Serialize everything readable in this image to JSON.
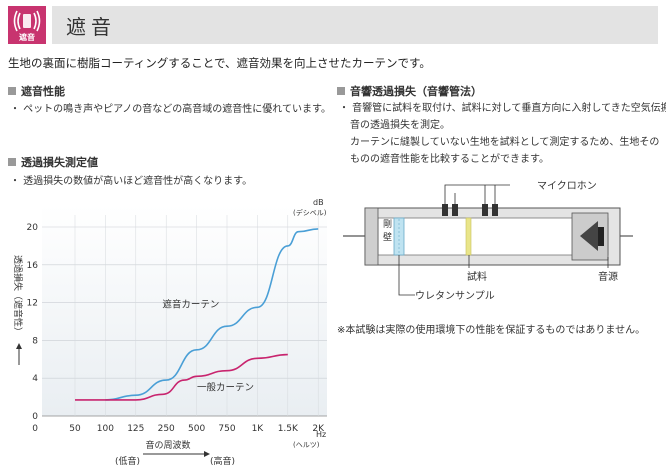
{
  "header": {
    "badge_label": "遮音",
    "title": "遮音",
    "accent_color": "#c8346f",
    "title_bar_color": "#e3e3e3",
    "badge_icon": "sound-waves-icon"
  },
  "intro": "生地の裏面に樹脂コーティングすることで、遮音効果を向上させたカーテンです。",
  "left": {
    "section1_heading": "遮音性能",
    "section1_bullet": "・ ペットの鳴き声やピアノの音などの高音域の遮音性に優れています。",
    "section2_heading": "透過損失測定値",
    "section2_bullet": "・ 透過損失の数値が高いほど遮音性が高くなります。"
  },
  "right": {
    "heading": "音響透過損失（音響管法）",
    "bullet_lines": [
      "・ 音響管に試料を取付け、試料に対して垂直方向に入射してきた空気伝搬",
      "音の透過損失を測定。",
      "カーテンに縫製していない生地を試料として測定するため、生地その",
      "ものの遮音性能を比較することができます。"
    ],
    "diagram": {
      "wall_label": "剛壁",
      "microphone_label": "マイクロホン",
      "sample_label": "試料",
      "urethane_label": "ウレタンサンプル",
      "source_label": "音源"
    },
    "note": "※本試験は実際の使用環境下の性能を保証するものではありません。"
  },
  "chart_data": {
    "type": "line",
    "categories": [
      "50",
      "100",
      "125",
      "250",
      "500",
      "750",
      "1K",
      "1.5K",
      "2K"
    ],
    "y_unit_top": "dB",
    "y_unit_sub": "(デシベル)",
    "ylabel": "透過損失（遮音性）",
    "ylim": [
      0,
      20
    ],
    "yticks": [
      "0",
      "4",
      "8",
      "12",
      "16",
      "20"
    ],
    "x_unit": "Hz",
    "x_unit_sub": "(ヘルツ)",
    "xlabel": "音の周波数",
    "x_low": "(低音)",
    "x_high": "(高音)",
    "grid": true,
    "series": [
      {
        "name": "遮音カーテン",
        "color": "#4a9fd6",
        "values": [
          1.7,
          2.2,
          3.8,
          7.0,
          9.5,
          11.5,
          18.0,
          19.5,
          19.8
        ],
        "x": [
          1,
          2,
          3,
          4,
          5,
          6,
          7,
          7.35,
          8
        ]
      },
      {
        "name": "一般カーテン",
        "color": "#c8246e",
        "values": [
          1.7,
          1.7,
          1.7,
          2.3,
          3.8,
          4.2,
          4.8,
          6.1,
          6.5
        ],
        "x": [
          0,
          1,
          2,
          2.9,
          3.6,
          4,
          5,
          6,
          7
        ]
      }
    ]
  }
}
